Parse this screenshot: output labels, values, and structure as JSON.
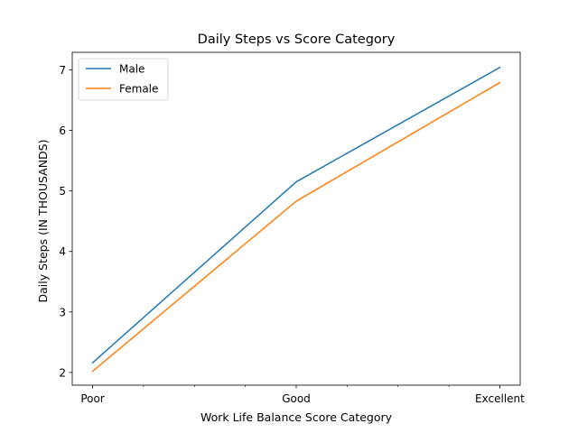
{
  "chart_data": {
    "type": "line",
    "title": "Daily Steps vs Score Category",
    "xlabel": "Work Life Balance Score Category",
    "ylabel": "Daily Steps (IN THOUSANDS)",
    "categories": [
      "Poor",
      "Good",
      "Excellent"
    ],
    "x": [
      0,
      1,
      2
    ],
    "xlim": [
      -0.1,
      2.1
    ],
    "x_minor_ticks": [
      0.25,
      0.5,
      0.75,
      1.25,
      1.5,
      1.75
    ],
    "ylim": [
      1.79,
      7.29
    ],
    "y_ticks": [
      2,
      3,
      4,
      5,
      6,
      7
    ],
    "grid": false,
    "legend_position": "top-left",
    "series": [
      {
        "name": "Male",
        "color": "#1f77b4",
        "values": [
          2.16,
          5.15,
          7.04
        ]
      },
      {
        "name": "Female",
        "color": "#ff7f0e",
        "values": [
          2.02,
          4.83,
          6.79
        ]
      }
    ]
  }
}
